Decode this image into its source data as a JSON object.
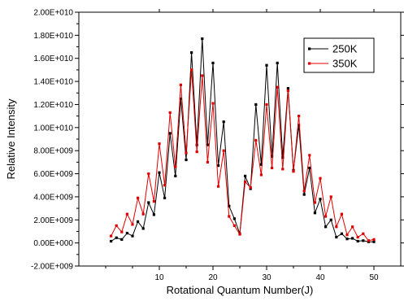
{
  "chart_data": {
    "type": "line",
    "title": "",
    "xlabel": "Rotational Quantum Number(J)",
    "ylabel": "Relative Intensity",
    "xlim": [
      -5,
      55
    ],
    "ylim": [
      -2000000000.0,
      20000000000.0
    ],
    "xticks": [
      10,
      20,
      30,
      40,
      50
    ],
    "xtick_labels": [
      "10",
      "20",
      "30",
      "40",
      "50"
    ],
    "yticks": [
      -2000000000.0,
      0,
      2000000000.0,
      4000000000.0,
      6000000000.0,
      8000000000.0,
      10000000000.0,
      12000000000.0,
      14000000000.0,
      16000000000.0,
      18000000000.0,
      20000000000.0
    ],
    "ytick_labels": [
      "-2.00E+009",
      "0.00E+000",
      "2.00E+009",
      "4.00E+009",
      "6.00E+009",
      "8.00E+009",
      "1.00E+010",
      "1.20E+010",
      "1.40E+010",
      "1.60E+010",
      "1.80E+010",
      "2.00E+010"
    ],
    "grid": false,
    "legend_position": "top-right",
    "x": [
      1,
      2,
      3,
      4,
      5,
      6,
      7,
      8,
      9,
      10,
      11,
      12,
      13,
      14,
      15,
      16,
      17,
      18,
      19,
      20,
      21,
      22,
      23,
      24,
      25,
      26,
      27,
      28,
      29,
      30,
      31,
      32,
      33,
      34,
      35,
      36,
      37,
      38,
      39,
      40,
      41,
      42,
      43,
      44,
      45,
      46,
      47,
      48,
      49,
      50
    ],
    "series": [
      {
        "name": "250K",
        "color": "#000000",
        "values": [
          150000000.0,
          450000000.0,
          300000000.0,
          850000000.0,
          600000000.0,
          1850000000.0,
          1250000000.0,
          3500000000.0,
          2450000000.0,
          6100000000.0,
          3900000000.0,
          9500000000.0,
          5800000000.0,
          12500000000.0,
          7200000000.0,
          16500000000.0,
          8500000000.0,
          17700000000.0,
          8500000000.0,
          15600000000.0,
          6700000000.0,
          10500000000.0,
          3200000000.0,
          2100000000.0,
          800000000.0,
          5800000000.0,
          4700000000.0,
          12000000000.0,
          6800000000.0,
          15400000000.0,
          7500000000.0,
          15600000000.0,
          7400000000.0,
          13400000000.0,
          6300000000.0,
          10200000000.0,
          4200000000.0,
          6500000000.0,
          2600000000.0,
          3800000000.0,
          1400000000.0,
          2000000000.0,
          500000000.0,
          800000000.0,
          350000000.0,
          400000000.0,
          150000000.0,
          200000000.0,
          100000000.0,
          100000000.0
        ]
      },
      {
        "name": "350K",
        "color": "#e00000",
        "values": [
          600000000.0,
          1500000000.0,
          950000000.0,
          2500000000.0,
          1600000000.0,
          3900000000.0,
          2500000000.0,
          6000000000.0,
          3600000000.0,
          8600000000.0,
          5000000000.0,
          11300000000.0,
          6600000000.0,
          13700000000.0,
          7800000000.0,
          15000000000.0,
          7900000000.0,
          14500000000.0,
          7000000000.0,
          12100000000.0,
          4900000000.0,
          8000000000.0,
          2300000000.0,
          1500000000.0,
          750000000.0,
          5300000000.0,
          4800000000.0,
          8900000000.0,
          5900000000.0,
          12000000000.0,
          6500000000.0,
          13500000000.0,
          6400000000.0,
          13200000000.0,
          6200000000.0,
          11000000000.0,
          4500000000.0,
          7600000000.0,
          3500000000.0,
          5600000000.0,
          2300000000.0,
          4000000000.0,
          1400000000.0,
          2500000000.0,
          700000000.0,
          1400000000.0,
          500000000.0,
          800000000.0,
          200000000.0,
          300000000.0
        ]
      }
    ]
  }
}
